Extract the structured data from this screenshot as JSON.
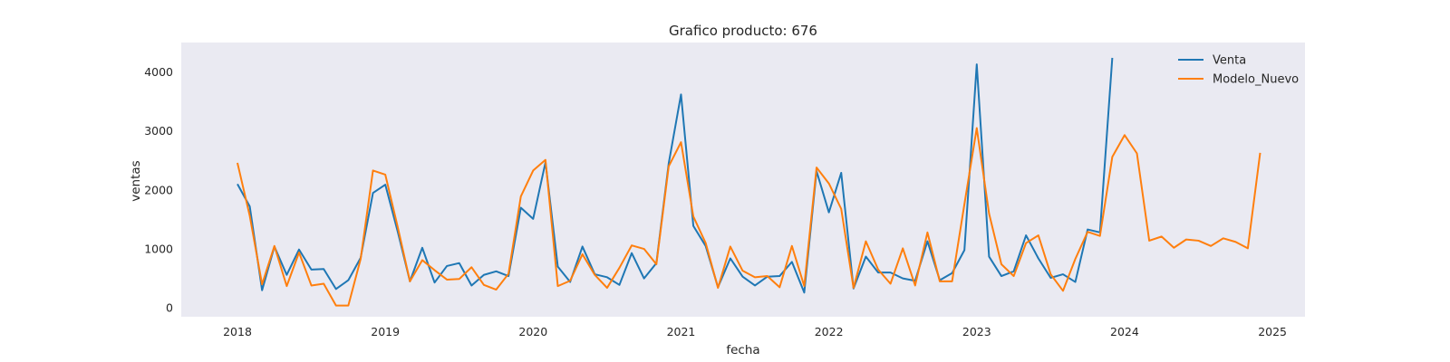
{
  "chart_data": {
    "type": "line",
    "title": "Grafico producto: 676",
    "xlabel": "fecha",
    "ylabel": "ventas",
    "xlim": [
      2017.62,
      2025.22
    ],
    "ylim": [
      -150,
      4500
    ],
    "xticks": [
      2018,
      2019,
      2020,
      2021,
      2022,
      2023,
      2024,
      2025
    ],
    "xtick_labels": [
      "2018",
      "2019",
      "2020",
      "2021",
      "2022",
      "2023",
      "2024",
      "2025"
    ],
    "yticks": [
      0,
      1000,
      2000,
      3000,
      4000
    ],
    "ytick_labels": [
      "0",
      "1000",
      "2000",
      "3000",
      "4000"
    ],
    "grid": false,
    "legend": "top-right",
    "x_start": 2018.0,
    "x_step": 0.0833333,
    "series": [
      {
        "name": "Venta",
        "color": "#1f77b4",
        "values": [
          2100,
          1720,
          300,
          1040,
          560,
          990,
          650,
          660,
          320,
          470,
          850,
          1950,
          2090,
          1300,
          450,
          1020,
          430,
          710,
          760,
          380,
          560,
          620,
          540,
          1700,
          1510,
          2470,
          700,
          440,
          1040,
          570,
          520,
          390,
          930,
          500,
          760,
          2450,
          3620,
          1390,
          1050,
          350,
          840,
          530,
          380,
          530,
          540,
          780,
          260,
          2320,
          1620,
          2290,
          330,
          870,
          600,
          600,
          500,
          460,
          1130,
          470,
          590,
          980,
          4130,
          870,
          540,
          620,
          1230,
          840,
          510,
          570,
          440,
          1330,
          1280,
          4240
        ]
      },
      {
        "name": "Modelo_Nuevo",
        "color": "#ff7f0e",
        "values": [
          2460,
          1560,
          400,
          1050,
          370,
          940,
          380,
          410,
          40,
          40,
          830,
          2330,
          2260,
          1380,
          450,
          810,
          640,
          480,
          490,
          690,
          390,
          310,
          580,
          1890,
          2330,
          2510,
          370,
          460,
          910,
          560,
          340,
          680,
          1060,
          1000,
          740,
          2400,
          2810,
          1550,
          1100,
          340,
          1040,
          630,
          520,
          540,
          350,
          1050,
          370,
          2380,
          2110,
          1680,
          340,
          1130,
          650,
          410,
          1010,
          380,
          1280,
          450,
          450,
          1760,
          3050,
          1600,
          740,
          540,
          1100,
          1230,
          570,
          290,
          830,
          1290,
          1220,
          2560,
          2930,
          2620,
          1140,
          1210,
          1020,
          1160,
          1140,
          1050,
          1180,
          1120,
          1010,
          2630
        ]
      }
    ]
  }
}
